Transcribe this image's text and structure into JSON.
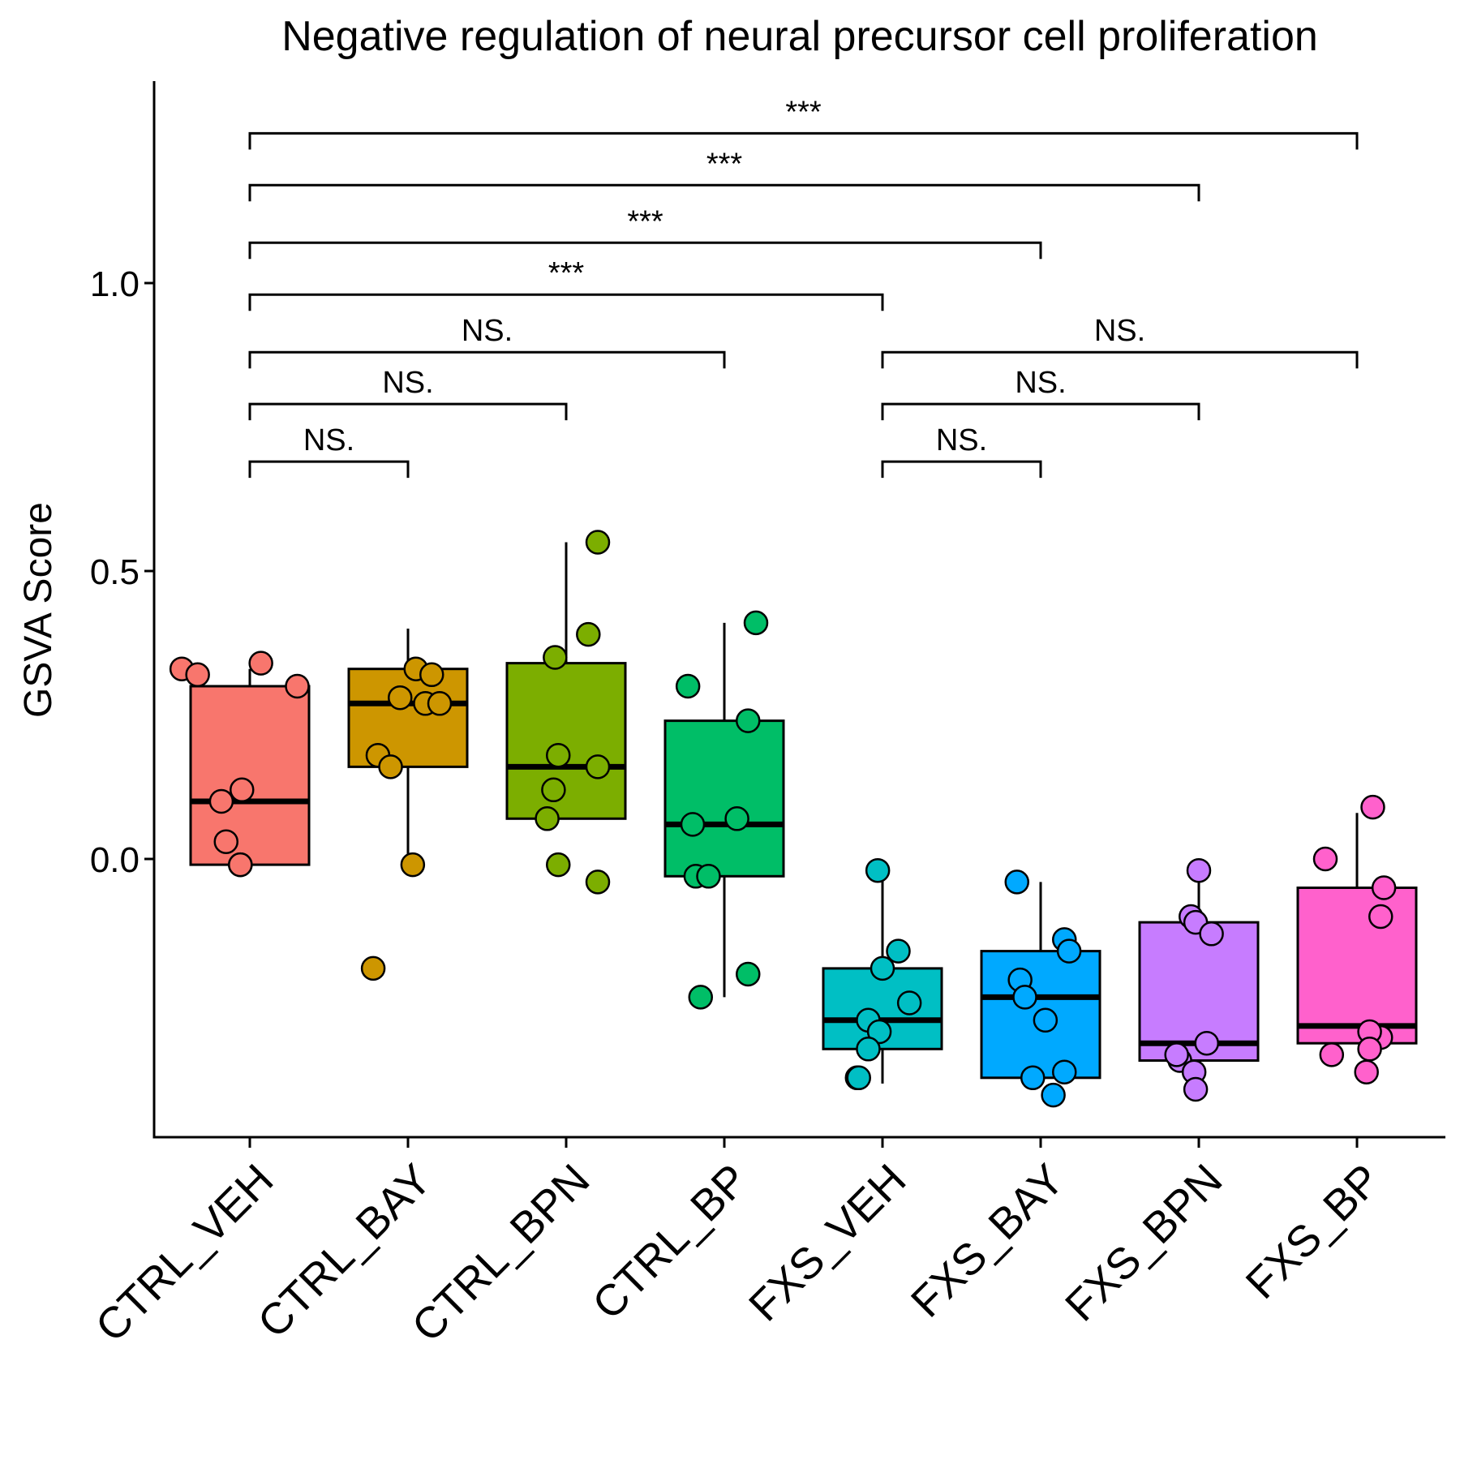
{
  "chart_data": {
    "type": "box",
    "title": "Negative regulation of neural precursor cell proliferation",
    "xlabel": "",
    "ylabel": "GSVA Score",
    "ylim": [
      -0.49,
      1.35
    ],
    "yticks": [
      0.0,
      0.5,
      1.0
    ],
    "ytick_labels": [
      "0.0",
      "0.5",
      "1.0"
    ],
    "categories": [
      "CTRL_VEH",
      "CTRL_BAY",
      "CTRL_BPN",
      "CTRL_BP",
      "FXS_VEH",
      "FXS_BAY",
      "FXS_BPN",
      "FXS_BP"
    ],
    "colors": [
      "#F8766D",
      "#CD9600",
      "#7CAE00",
      "#00BE67",
      "#00BFC4",
      "#00A9FF",
      "#C77CFF",
      "#FF61CC"
    ],
    "boxes": [
      {
        "q1": -0.01,
        "median": 0.1,
        "q3": 0.3,
        "whisker_low": -0.015,
        "whisker_high": 0.33
      },
      {
        "q1": 0.16,
        "median": 0.27,
        "q3": 0.33,
        "whisker_low": -0.01,
        "whisker_high": 0.4
      },
      {
        "q1": 0.07,
        "median": 0.16,
        "q3": 0.34,
        "whisker_low": 0.07,
        "whisker_high": 0.55
      },
      {
        "q1": -0.03,
        "median": 0.06,
        "q3": 0.24,
        "whisker_low": -0.24,
        "whisker_high": 0.41
      },
      {
        "q1": -0.33,
        "median": -0.28,
        "q3": -0.19,
        "whisker_low": -0.39,
        "whisker_high": -0.02
      },
      {
        "q1": -0.38,
        "median": -0.24,
        "q3": -0.16,
        "whisker_low": -0.38,
        "whisker_high": -0.04
      },
      {
        "q1": -0.35,
        "median": -0.32,
        "q3": -0.11,
        "whisker_low": -0.35,
        "whisker_high": -0.02
      },
      {
        "q1": -0.32,
        "median": -0.29,
        "q3": -0.05,
        "whisker_low": -0.32,
        "whisker_high": 0.08
      }
    ],
    "points": [
      [
        [
          -0.43,
          0.33
        ],
        [
          -0.33,
          0.32
        ],
        [
          0.07,
          0.34
        ],
        [
          0.3,
          0.3
        ],
        [
          -0.05,
          0.12
        ],
        [
          -0.18,
          0.1
        ],
        [
          -0.15,
          0.03
        ],
        [
          -0.06,
          -0.01
        ],
        [
          -0.06,
          -0.01
        ]
      ],
      [
        [
          0.05,
          0.33
        ],
        [
          -0.05,
          0.28
        ],
        [
          0.11,
          0.27
        ],
        [
          0.2,
          0.27
        ],
        [
          0.15,
          0.32
        ],
        [
          -0.19,
          0.18
        ],
        [
          -0.11,
          0.16
        ],
        [
          0.03,
          -0.01
        ],
        [
          -0.22,
          -0.19
        ]
      ],
      [
        [
          0.2,
          0.55
        ],
        [
          0.14,
          0.39
        ],
        [
          -0.07,
          0.35
        ],
        [
          -0.05,
          0.18
        ],
        [
          0.2,
          0.16
        ],
        [
          -0.08,
          0.12
        ],
        [
          -0.12,
          0.07
        ],
        [
          -0.05,
          -0.01
        ],
        [
          0.2,
          -0.04
        ]
      ],
      [
        [
          0.2,
          0.41
        ],
        [
          -0.23,
          0.3
        ],
        [
          0.15,
          0.24
        ],
        [
          -0.2,
          0.06
        ],
        [
          0.08,
          0.07
        ],
        [
          -0.18,
          -0.03
        ],
        [
          -0.1,
          -0.03
        ],
        [
          -0.15,
          -0.24
        ],
        [
          0.15,
          -0.2
        ]
      ],
      [
        [
          -0.03,
          -0.02
        ],
        [
          0.1,
          -0.16
        ],
        [
          0.0,
          -0.19
        ],
        [
          0.17,
          -0.25
        ],
        [
          -0.09,
          -0.28
        ],
        [
          -0.02,
          -0.3
        ],
        [
          -0.09,
          -0.33
        ],
        [
          -0.16,
          -0.38
        ],
        [
          -0.15,
          -0.38
        ]
      ],
      [
        [
          -0.15,
          -0.04
        ],
        [
          0.15,
          -0.14
        ],
        [
          0.18,
          -0.16
        ],
        [
          -0.13,
          -0.21
        ],
        [
          -0.1,
          -0.24
        ],
        [
          0.03,
          -0.28
        ],
        [
          -0.05,
          -0.38
        ],
        [
          0.15,
          -0.37
        ],
        [
          0.08,
          -0.41
        ]
      ],
      [
        [
          0.0,
          -0.02
        ],
        [
          -0.05,
          -0.1
        ],
        [
          -0.02,
          -0.11
        ],
        [
          0.08,
          -0.13
        ],
        [
          0.05,
          -0.32
        ],
        [
          -0.12,
          -0.35
        ],
        [
          -0.14,
          -0.34
        ],
        [
          -0.03,
          -0.37
        ],
        [
          -0.02,
          -0.4
        ]
      ],
      [
        [
          0.1,
          0.09
        ],
        [
          -0.2,
          0.0
        ],
        [
          0.17,
          -0.05
        ],
        [
          0.15,
          -0.1
        ],
        [
          0.15,
          -0.31
        ],
        [
          -0.16,
          -0.34
        ],
        [
          0.08,
          -0.3
        ],
        [
          0.08,
          -0.33
        ],
        [
          0.06,
          -0.37
        ]
      ]
    ],
    "comparisons": [
      {
        "from": 0,
        "to": 1,
        "y": 0.69,
        "label": "NS."
      },
      {
        "from": 0,
        "to": 2,
        "y": 0.79,
        "label": "NS."
      },
      {
        "from": 0,
        "to": 3,
        "y": 0.88,
        "label": "NS."
      },
      {
        "from": 0,
        "to": 4,
        "y": 0.98,
        "label": "***"
      },
      {
        "from": 0,
        "to": 5,
        "y": 1.07,
        "label": "***"
      },
      {
        "from": 0,
        "to": 6,
        "y": 1.17,
        "label": "***"
      },
      {
        "from": 0,
        "to": 7,
        "y": 1.26,
        "label": "***"
      },
      {
        "from": 4,
        "to": 5,
        "y": 0.69,
        "label": "NS."
      },
      {
        "from": 4,
        "to": 6,
        "y": 0.79,
        "label": "NS."
      },
      {
        "from": 4,
        "to": 7,
        "y": 0.88,
        "label": "NS."
      }
    ]
  }
}
